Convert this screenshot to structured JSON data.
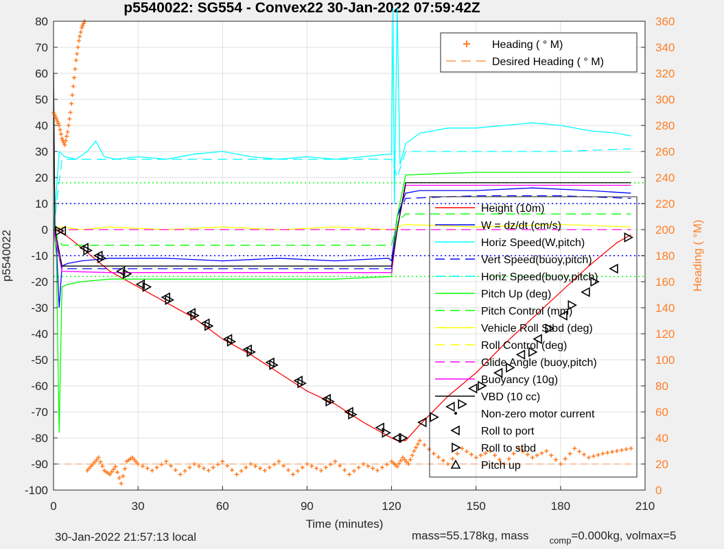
{
  "chart_data": {
    "type": "line",
    "title": "p5540022: SG554 - Convex22 30-Jan-2022 07:59:42Z",
    "xlabel": "Time (minutes)",
    "ylabel": "p5540022",
    "y2label": "Heading (  °M)",
    "xlim": [
      0,
      210
    ],
    "ylim": [
      -100,
      80
    ],
    "y2lim": [
      0,
      360
    ],
    "xticks": [
      0,
      30,
      60,
      90,
      120,
      150,
      180,
      210
    ],
    "yticks": [
      80,
      70,
      60,
      50,
      40,
      30,
      20,
      10,
      0,
      -10,
      -20,
      -30,
      -40,
      -50,
      -60,
      -70,
      -80,
      -90,
      -100
    ],
    "y2ticks": [
      360,
      340,
      320,
      300,
      280,
      260,
      240,
      220,
      200,
      180,
      160,
      140,
      120,
      100,
      80,
      60,
      40,
      20,
      0
    ],
    "grid": true,
    "heading_legend": {
      "placement": "top-right",
      "entries": [
        "Heading (  ° M)",
        "Desired Heading (    ° M)"
      ]
    },
    "legend": {
      "placement": "right",
      "entries": [
        "Height (10m)",
        "W = dz/dt (cm/s)",
        "Horiz Speed(W,pitch)",
        "Vert Speed(buoy,pitch)",
        "Horiz Speed(buoy,pitch)",
        "Pitch Up (deg)",
        "Pitch Control (mm)",
        "Vehicle Roll Stbd (deg)",
        "Roll Control (deg)",
        "Glide Angle (buoy,pitch)",
        "Buoyancy (10g)",
        "VBD (10 cc)",
        "Non-zero motor current",
        "Roll to port",
        "Roll to stbd",
        "Pitch up"
      ]
    },
    "series": [
      {
        "name": "Height (10m)",
        "color": "#ff0000",
        "style": "solid",
        "x": [
          0,
          3,
          10,
          20,
          30,
          40,
          50,
          60,
          70,
          80,
          90,
          100,
          110,
          120,
          122,
          125,
          130,
          140,
          150,
          160,
          170,
          180,
          190,
          200,
          205
        ],
        "y": [
          0,
          -1,
          -7,
          -16,
          -22,
          -28,
          -34,
          -42,
          -48,
          -55,
          -62,
          -67,
          -74,
          -80,
          -81,
          -81,
          -75,
          -64,
          -55,
          -44,
          -34,
          -24,
          -14,
          -5,
          -2
        ]
      },
      {
        "name": "W = dz/dt (cm/s)",
        "color": "#0000ff",
        "style": "solid",
        "x": [
          0,
          1,
          2,
          3,
          5,
          10,
          20,
          40,
          60,
          80,
          100,
          119,
          120,
          122,
          125,
          130,
          150,
          170,
          190,
          205
        ],
        "y": [
          0,
          -5,
          -30,
          -14,
          -13,
          -12,
          -11,
          -11,
          -12,
          -11,
          -12,
          -11,
          -12,
          5,
          14,
          15,
          15,
          16,
          15,
          14
        ]
      },
      {
        "name": "Horiz Speed(W,pitch)",
        "color": "#00ffff",
        "style": "solid",
        "x": [
          0,
          2,
          4,
          8,
          12,
          15,
          18,
          22,
          30,
          40,
          50,
          60,
          70,
          80,
          90,
          100,
          110,
          119,
          120,
          120.5,
          121,
          122,
          123,
          125,
          130,
          140,
          150,
          160,
          170,
          180,
          190,
          200,
          205
        ],
        "y": [
          0,
          30,
          28,
          27,
          30,
          34,
          28,
          27,
          28,
          27,
          29,
          30,
          28,
          27,
          28,
          27,
          28,
          29,
          29,
          85,
          10,
          85,
          25,
          33,
          37,
          39,
          39,
          40,
          41,
          40,
          38,
          37,
          36
        ]
      },
      {
        "name": "Vert Speed(buoy,pitch)",
        "color": "#0000ff",
        "style": "dashed",
        "x": [
          0,
          3,
          20,
          60,
          100,
          120,
          122,
          125,
          150,
          180,
          205
        ],
        "y": [
          0,
          -15,
          -15,
          -15,
          -15,
          -15,
          5,
          12,
          13,
          13,
          12
        ]
      },
      {
        "name": "Horiz Speed(buoy,pitch)",
        "color": "#00ffff",
        "style": "dashed",
        "x": [
          0,
          3,
          20,
          60,
          100,
          120,
          122,
          125,
          150,
          180,
          205
        ],
        "y": [
          0,
          27,
          27,
          27,
          27,
          27,
          20,
          30,
          30,
          30,
          31
        ]
      },
      {
        "name": "Pitch Up (deg)",
        "color": "#00ff00",
        "style": "solid",
        "x": [
          0,
          1,
          2,
          3,
          5,
          10,
          20,
          40,
          60,
          80,
          100,
          120,
          122,
          125,
          150,
          180,
          205
        ],
        "y": [
          0,
          -10,
          -78,
          -22,
          -21,
          -20,
          -19,
          -19,
          -19,
          -19,
          -19,
          -18,
          5,
          21,
          22,
          22,
          22
        ]
      },
      {
        "name": "Pitch Control (mm)",
        "color": "#00ff00",
        "style": "dashed",
        "x": [
          0,
          3,
          20,
          60,
          100,
          120,
          122,
          125,
          150,
          180,
          205
        ],
        "y": [
          0,
          -6,
          -6,
          -6,
          -6,
          -6,
          3,
          6,
          6,
          6,
          6
        ]
      },
      {
        "name": "Vehicle Roll Stbd (deg)",
        "color": "#ffff00",
        "style": "solid",
        "x": [
          0,
          3,
          10,
          20,
          40,
          60,
          80,
          100,
          120,
          125,
          150,
          180,
          205
        ],
        "y": [
          0,
          1,
          0,
          1,
          0,
          1,
          0,
          1,
          0,
          2,
          1,
          2,
          1
        ]
      },
      {
        "name": "Roll Control (deg)",
        "color": "#ffff00",
        "style": "dashed",
        "x": [
          0,
          3,
          60,
          120,
          125,
          205
        ],
        "y": [
          0,
          0,
          0,
          0,
          0,
          0
        ]
      },
      {
        "name": "Glide Angle (buoy,pitch)",
        "color": "#ff00ff",
        "style": "dashed",
        "x": [
          0,
          3,
          60,
          120,
          125,
          205
        ],
        "y": [
          0,
          0,
          0,
          0,
          0,
          0
        ]
      },
      {
        "name": "Buoyancy (10g)",
        "color": "#ff00ff",
        "style": "solid",
        "x": [
          0,
          3,
          20,
          60,
          100,
          120,
          122,
          125,
          150,
          180,
          205
        ],
        "y": [
          0,
          -16,
          -16.5,
          -16.5,
          -16.5,
          -16.5,
          0,
          17,
          17,
          17,
          17
        ]
      },
      {
        "name": "VBD (10 cc)",
        "color": "#000000",
        "style": "solid",
        "x": [
          0,
          0.5,
          3,
          20,
          60,
          100,
          120,
          122,
          125,
          150,
          180,
          205
        ],
        "y": [
          60,
          0,
          -14,
          -14,
          -14,
          -14,
          -14,
          0,
          18,
          18,
          18,
          18
        ]
      }
    ],
    "heading": {
      "name": "Heading (  ° M)",
      "color": "#ff7f27",
      "x": [
        0,
        1,
        2,
        3,
        4,
        5,
        6,
        7,
        8,
        9,
        10,
        11,
        12,
        14,
        16,
        18,
        20,
        22,
        24,
        26,
        28,
        30,
        35,
        40,
        45,
        50,
        55,
        60,
        65,
        70,
        75,
        80,
        85,
        90,
        95,
        100,
        105,
        110,
        115,
        120,
        122,
        124,
        126,
        128,
        130,
        135,
        140,
        145,
        150,
        155,
        160,
        165,
        170,
        175,
        180,
        185,
        190,
        195,
        200,
        205
      ],
      "y": [
        290,
        285,
        280,
        270,
        265,
        275,
        290,
        310,
        330,
        345,
        355,
        360,
        15,
        20,
        25,
        15,
        12,
        18,
        5,
        22,
        25,
        20,
        15,
        22,
        12,
        20,
        15,
        22,
        12,
        20,
        15,
        22,
        12,
        20,
        15,
        22,
        12,
        20,
        15,
        22,
        18,
        25,
        20,
        30,
        38,
        28,
        20,
        32,
        25,
        30,
        20,
        32,
        25,
        30,
        20,
        32,
        25,
        28,
        30,
        32
      ]
    },
    "desired_heading": {
      "name": "Desired Heading (    ° M)",
      "color": "#ff7f27",
      "x": [
        0,
        205
      ],
      "y": [
        20,
        20
      ]
    },
    "reference_lines": [
      {
        "y": 18,
        "color": "#00ff00"
      },
      {
        "y": -18,
        "color": "#00ff00"
      },
      {
        "y": 10,
        "color": "#0000ff"
      },
      {
        "y": -10,
        "color": "#0000ff"
      }
    ],
    "roll_to_port": {
      "x": [
        3,
        11,
        16,
        24,
        31,
        40,
        49,
        54,
        62,
        69,
        77,
        87,
        97,
        105,
        116,
        122,
        131,
        141,
        149,
        158,
        166,
        172,
        181,
        189,
        199
      ],
      "y": [
        -0.5,
        -7,
        -10,
        -16,
        -21,
        -26,
        -32,
        -36,
        -42,
        -46,
        -51,
        -58,
        -65,
        -70,
        -76,
        -80,
        -74,
        -68,
        -61,
        -55,
        -48,
        -42,
        -33,
        -24,
        -15
      ]
    },
    "roll_to_stbd": {
      "x": [
        2,
        12,
        17,
        26,
        33,
        41,
        50,
        55,
        63,
        70,
        78,
        88,
        98,
        106,
        118,
        124,
        135,
        145,
        152,
        162,
        170,
        176,
        184,
        192,
        204
      ],
      "y": [
        -0.5,
        -8,
        -11,
        -17,
        -22,
        -27,
        -33,
        -37,
        -43,
        -47,
        -52,
        -59,
        -66,
        -71,
        -78,
        -80,
        -72,
        -67,
        -60,
        -53,
        -47,
        -38,
        -29,
        -20,
        -3
      ]
    }
  },
  "footer": {
    "local_time": "30-Jan-2022 21:57:13 local",
    "mass_text": "mass=55.178kg, mass",
    "comp_sub": "comp",
    "comp_text": "=0.000kg, volmax=5"
  }
}
